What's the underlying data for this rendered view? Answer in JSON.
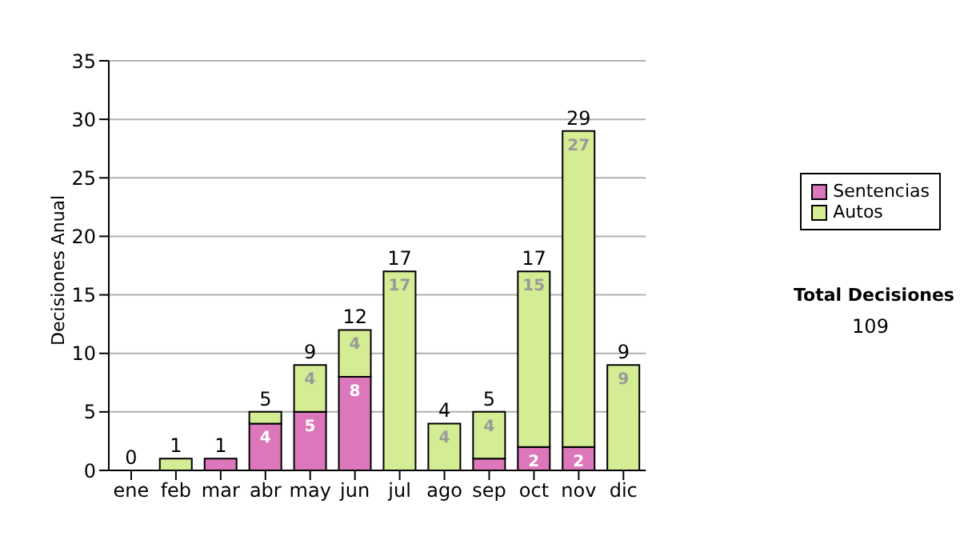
{
  "chart_data": {
    "type": "bar",
    "ylabel": "Decisiones Anual",
    "categories": [
      "ene",
      "feb",
      "mar",
      "abr",
      "may",
      "jun",
      "jul",
      "ago",
      "sep",
      "oct",
      "nov",
      "dic"
    ],
    "stacked": true,
    "series": [
      {
        "name": "Sentencias",
        "color": "#dd77bb",
        "values": [
          0,
          0,
          1,
          4,
          5,
          8,
          0,
          0,
          1,
          2,
          2,
          0
        ],
        "value_labels": [
          null,
          null,
          null,
          "4",
          "5",
          "8",
          null,
          null,
          null,
          "2",
          "2",
          null
        ]
      },
      {
        "name": "Autos",
        "color": "#d4ec94",
        "values": [
          0,
          1,
          0,
          1,
          4,
          4,
          17,
          4,
          4,
          15,
          27,
          9
        ],
        "value_labels": [
          null,
          null,
          null,
          null,
          "4",
          "4",
          "17",
          "4",
          "4",
          "15",
          "27",
          "9"
        ]
      }
    ],
    "totals": [
      "0",
      "1",
      "1",
      "5",
      "9",
      "12",
      "17",
      "4",
      "5",
      "17",
      "29",
      "9"
    ],
    "ylim": [
      0,
      35
    ],
    "yticks": [
      0,
      5,
      10,
      15,
      20,
      25,
      30,
      35
    ],
    "grid": "y",
    "legend": "right",
    "annotations": [
      "Total Decisiones",
      "109"
    ]
  }
}
